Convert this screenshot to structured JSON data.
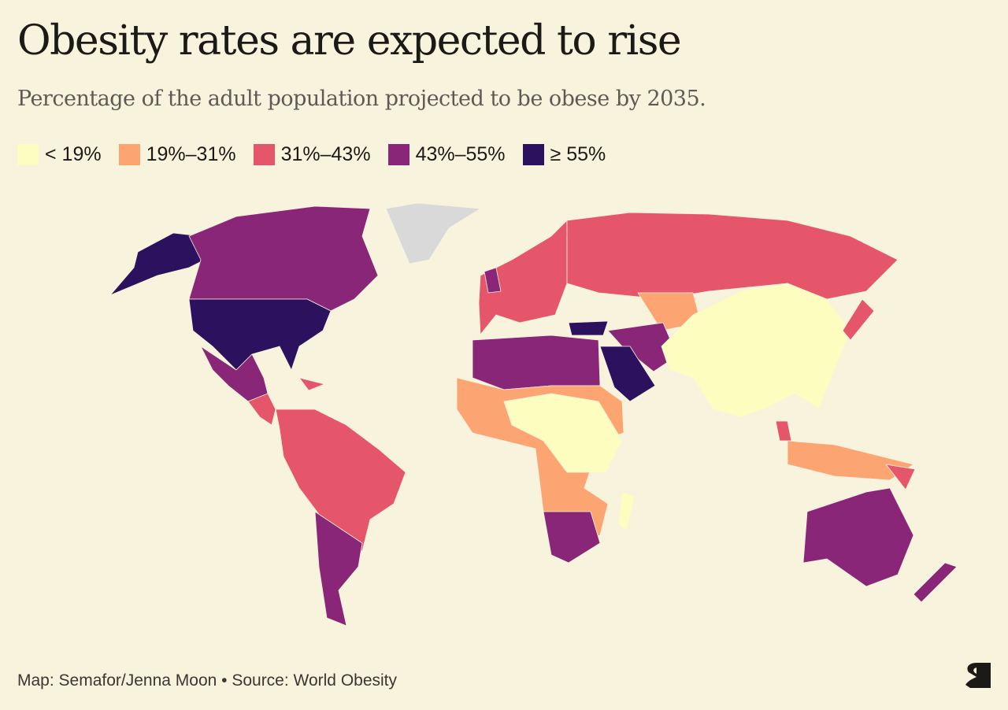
{
  "title": "Obesity rates are expected to rise",
  "subtitle": "Percentage of the adult population projected to be obese by 2035.",
  "legend": [
    {
      "label": "< 19%",
      "color": "#fcfdbf"
    },
    {
      "label": "19%–31%",
      "color": "#fca572"
    },
    {
      "label": "31%–43%",
      "color": "#e5566a"
    },
    {
      "label": "43%–55%",
      "color": "#8a2677"
    },
    {
      "label": "≥ 55%",
      "color": "#2c115f"
    }
  ],
  "no_data_color": "#d9d9d9",
  "map_data": [
    {
      "region": "Greenland",
      "class": -1
    },
    {
      "region": "Alaska",
      "class": 4
    },
    {
      "region": "Canada",
      "class": 3
    },
    {
      "region": "United States",
      "class": 4
    },
    {
      "region": "Mexico",
      "class": 3
    },
    {
      "region": "Central America",
      "class": 2
    },
    {
      "region": "Caribbean",
      "class": 2
    },
    {
      "region": "South America",
      "class": 2
    },
    {
      "region": "Southern Cone",
      "class": 3
    },
    {
      "region": "Europe",
      "class": 2
    },
    {
      "region": "United Kingdom",
      "class": 3
    },
    {
      "region": "Russia",
      "class": 2
    },
    {
      "region": "Kazakhstan",
      "class": 1
    },
    {
      "region": "Turkey",
      "class": 4
    },
    {
      "region": "North Africa",
      "class": 3
    },
    {
      "region": "Middle East",
      "class": 3
    },
    {
      "region": "Saudi Arabia",
      "class": 4
    },
    {
      "region": "Sub-Saharan Africa",
      "class": 1
    },
    {
      "region": "Central Africa",
      "class": 0
    },
    {
      "region": "Southern Africa",
      "class": 3
    },
    {
      "region": "Madagascar",
      "class": 0
    },
    {
      "region": "South & East Asia",
      "class": 0
    },
    {
      "region": "Maritime Southeast Asia",
      "class": 1
    },
    {
      "region": "Malaysia",
      "class": 2
    },
    {
      "region": "Papua New Guinea",
      "class": 2
    },
    {
      "region": "Japan",
      "class": 2
    },
    {
      "region": "Australia",
      "class": 3
    },
    {
      "region": "New Zealand",
      "class": 3
    }
  ],
  "footer": "Map: Semafor/Jenna Moon • Source: World Obesity",
  "logo_text": "S"
}
